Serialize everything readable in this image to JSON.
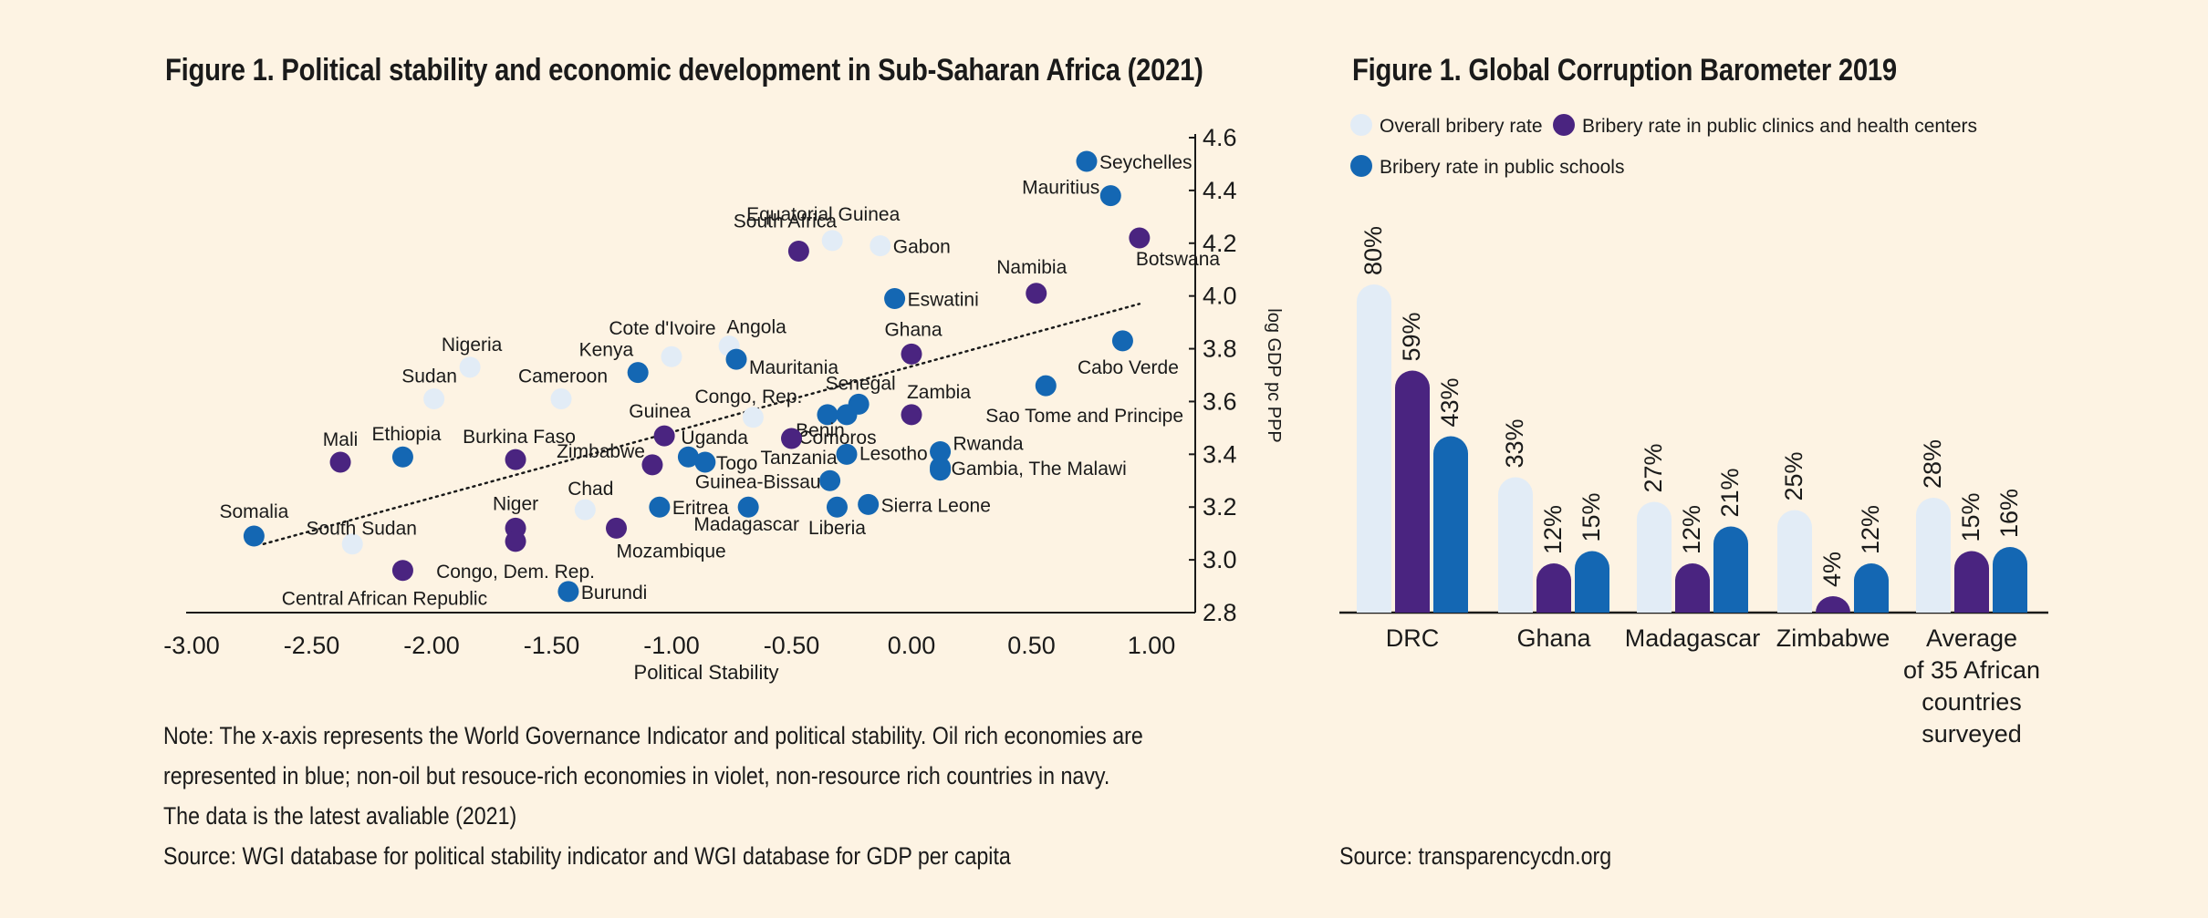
{
  "scatter": {
    "title": "Figure 1. Political stability and economic development in Sub-Saharan Africa (2021)",
    "note_lines": [
      "Note: The x-axis represents the World Governance Indicator and political stability. Oil rich economies are",
      "represented in blue; non-oil but resouce-rich economies in violet, non-resource rich countries in navy.",
      "The data is the latest avaliable (2021)",
      "Source: WGI database for political stability indicator and WGI database for GDP per capita"
    ]
  },
  "bars": {
    "title": "Figure 1. Global Corruption Barometer 2019",
    "source": "Source: transparencycdn.org"
  },
  "colors": {
    "light": "#e2ecf6",
    "violet": "#4a2480",
    "blue": "#1467b3",
    "background": "#fdf3e3"
  },
  "chart_data": [
    {
      "type": "scatter",
      "title": "Figure 1. Political stability and economic development in Sub-Saharan Africa (2021)",
      "xlabel": "Political Stability",
      "ylabel": "log GDP pc PPP",
      "xlim": [
        -3.0,
        1.0
      ],
      "ylim": [
        2.8,
        4.6
      ],
      "xticks": [
        "-3.00",
        "-2.50",
        "-2.00",
        "-1.50",
        "-1.00",
        "-0.50",
        "0.00",
        "0.50",
        "1.00"
      ],
      "yticks": [
        "2.8",
        "3.0",
        "3.2",
        "3.4",
        "3.6",
        "3.8",
        "4.0",
        "4.2",
        "4.4",
        "4.6"
      ],
      "y_axis_side": "right",
      "trendline": {
        "style": "dotted",
        "from": [
          -2.7,
          3.06
        ],
        "to": [
          0.95,
          3.97
        ]
      },
      "points": [
        {
          "label": "Seychelles",
          "x": 0.73,
          "y": 4.51,
          "color": "blue"
        },
        {
          "label": "Mauritius",
          "x": 0.83,
          "y": 4.38,
          "color": "blue"
        },
        {
          "label": "Botswana",
          "x": 0.95,
          "y": 4.22,
          "color": "violet"
        },
        {
          "label": "South Africa",
          "x": -0.47,
          "y": 4.17,
          "color": "violet"
        },
        {
          "label": "Equatorial Guinea",
          "x": -0.33,
          "y": 4.21,
          "color": "light"
        },
        {
          "label": "Gabon",
          "x": -0.13,
          "y": 4.19,
          "color": "light"
        },
        {
          "label": "Namibia",
          "x": 0.52,
          "y": 4.01,
          "color": "violet"
        },
        {
          "label": "Eswatini",
          "x": -0.07,
          "y": 3.99,
          "color": "blue"
        },
        {
          "label": "Cabo Verde",
          "x": 0.88,
          "y": 3.83,
          "color": "blue"
        },
        {
          "label": "Angola",
          "x": -0.76,
          "y": 3.81,
          "color": "light"
        },
        {
          "label": "Cote d'Ivoire",
          "x": -1.0,
          "y": 3.77,
          "color": "light"
        },
        {
          "label": "Kenya",
          "x": -1.14,
          "y": 3.71,
          "color": "blue"
        },
        {
          "label": "Mauritania",
          "x": -0.73,
          "y": 3.76,
          "color": "blue"
        },
        {
          "label": "Ghana",
          "x": 0.0,
          "y": 3.78,
          "color": "violet"
        },
        {
          "label": "Nigeria",
          "x": -1.84,
          "y": 3.73,
          "color": "light"
        },
        {
          "label": "Cameroon",
          "x": -1.46,
          "y": 3.61,
          "color": "light"
        },
        {
          "label": "Sudan",
          "x": -1.99,
          "y": 3.61,
          "color": "light"
        },
        {
          "label": "Sao Tome and Principe",
          "x": 0.56,
          "y": 3.66,
          "color": "blue"
        },
        {
          "label": "Congo, Rep.",
          "x": -0.66,
          "y": 3.54,
          "color": "light"
        },
        {
          "label": "Senegal",
          "x": -0.22,
          "y": 3.59,
          "color": "blue"
        },
        {
          "label": "Zambia",
          "x": 0.0,
          "y": 3.55,
          "color": "violet"
        },
        {
          "label": "Benin",
          "x": -0.35,
          "y": 3.55,
          "color": "blue"
        },
        {
          "label": "Comoros",
          "x": -0.27,
          "y": 3.55,
          "color": "blue"
        },
        {
          "label": "Guinea",
          "x": -1.03,
          "y": 3.47,
          "color": "violet"
        },
        {
          "label": "Uganda",
          "x": -0.93,
          "y": 3.39,
          "color": "blue"
        },
        {
          "label": "Togo",
          "x": -0.86,
          "y": 3.37,
          "color": "blue"
        },
        {
          "label": "Tanzania",
          "x": -0.5,
          "y": 3.46,
          "color": "violet"
        },
        {
          "label": "Lesotho",
          "x": -0.27,
          "y": 3.4,
          "color": "blue"
        },
        {
          "label": "Rwanda",
          "x": 0.12,
          "y": 3.41,
          "color": "blue"
        },
        {
          "label": "Gambia, The",
          "x": 0.12,
          "y": 3.35,
          "color": "blue"
        },
        {
          "label": "Malawi",
          "x": 0.12,
          "y": 3.34,
          "color": "blue"
        },
        {
          "label": "Mali",
          "x": -2.38,
          "y": 3.37,
          "color": "violet"
        },
        {
          "label": "Ethiopia",
          "x": -2.12,
          "y": 3.39,
          "color": "blue"
        },
        {
          "label": "Burkina Faso",
          "x": -1.65,
          "y": 3.38,
          "color": "violet"
        },
        {
          "label": "Zimbabwe",
          "x": -1.08,
          "y": 3.36,
          "color": "violet"
        },
        {
          "label": "Chad",
          "x": -1.36,
          "y": 3.19,
          "color": "light"
        },
        {
          "label": "Eritrea",
          "x": -1.05,
          "y": 3.2,
          "color": "blue"
        },
        {
          "label": "Madagascar",
          "x": -0.68,
          "y": 3.2,
          "color": "blue"
        },
        {
          "label": "Guinea-Bissau",
          "x": -0.34,
          "y": 3.3,
          "color": "blue"
        },
        {
          "label": "Liberia",
          "x": -0.31,
          "y": 3.2,
          "color": "blue"
        },
        {
          "label": "Sierra Leone",
          "x": -0.18,
          "y": 3.21,
          "color": "blue"
        },
        {
          "label": "Somalia",
          "x": -2.74,
          "y": 3.09,
          "color": "blue"
        },
        {
          "label": "South Sudan",
          "x": -2.33,
          "y": 3.06,
          "color": "light"
        },
        {
          "label": "Niger",
          "x": -1.65,
          "y": 3.12,
          "color": "violet"
        },
        {
          "label": "Mozambique",
          "x": -1.23,
          "y": 3.12,
          "color": "violet"
        },
        {
          "label": "Congo, Dem. Rep.",
          "x": -1.65,
          "y": 3.07,
          "color": "violet"
        },
        {
          "label": "Central African Republic",
          "x": -2.12,
          "y": 2.96,
          "color": "violet"
        },
        {
          "label": "Burundi",
          "x": -1.43,
          "y": 2.88,
          "color": "blue"
        }
      ]
    },
    {
      "type": "bar",
      "title": "Figure 1. Global Corruption Barometer 2019",
      "categories": [
        "DRC",
        "Ghana",
        "Madagascar",
        "Zimbabwe",
        "Average of 35 African countries surveyed"
      ],
      "series": [
        {
          "name": "Overall bribery rate",
          "values": [
            80,
            33,
            27,
            25,
            28
          ],
          "labels": [
            "80%",
            "33%",
            "27%",
            "25%",
            "28%"
          ],
          "color": "light"
        },
        {
          "name": "Bribery rate in public clinics and health centers",
          "values": [
            59,
            12,
            12,
            4,
            15
          ],
          "labels": [
            "59%",
            "12%",
            "12%",
            "4%",
            "15%"
          ],
          "color": "violet"
        },
        {
          "name": "Bribery rate in public schools",
          "values": [
            43,
            15,
            21,
            12,
            16
          ],
          "labels": [
            "43%",
            "15%",
            "21%",
            "12%",
            "16%"
          ],
          "color": "blue"
        }
      ],
      "category_label_lines": [
        [
          "DRC"
        ],
        [
          "Ghana"
        ],
        [
          "Madagascar"
        ],
        [
          "Zimbabwe"
        ],
        [
          "Average",
          "of 35 African",
          "countries",
          "surveyed"
        ]
      ],
      "legend_position": "top",
      "source": "Source: transparencycdn.org"
    }
  ]
}
